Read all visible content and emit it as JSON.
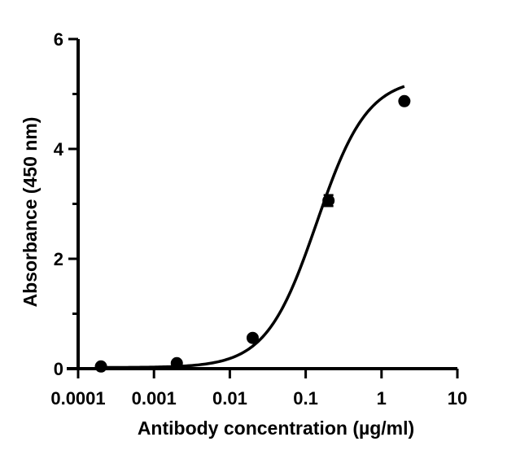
{
  "chart_data": {
    "type": "scatter",
    "title": "",
    "xlabel": "Antibody concentration (µg/ml)",
    "ylabel": "Absorbance (450 nm)",
    "xscale": "log",
    "xlim": [
      0.0001,
      10
    ],
    "ylim": [
      0,
      6
    ],
    "grid": false,
    "legend": "none",
    "x_ticks": [
      0.0001,
      0.001,
      0.01,
      0.1,
      1,
      10
    ],
    "x_tick_labels": [
      "0.0001",
      "0.001",
      "0.01",
      "0.1",
      "1",
      "10"
    ],
    "y_ticks": [
      0,
      2,
      4,
      6
    ],
    "y_tick_labels": [
      "0",
      "2",
      "4",
      "6"
    ],
    "series": [
      {
        "x": [
          0.0002,
          0.002,
          0.02,
          0.2,
          2
        ],
        "y": [
          0.04,
          0.1,
          0.56,
          3.06,
          4.87
        ],
        "error": [
          0.02,
          0.03,
          0.03,
          0.1,
          0.04
        ]
      }
    ],
    "fit": {
      "type": "four-parameter logistic",
      "bottom": 0.02,
      "top": 5.3,
      "ec50": 0.14,
      "hill": 1.3
    },
    "colors": {
      "marks": "#000000",
      "background": "#ffffff"
    }
  }
}
